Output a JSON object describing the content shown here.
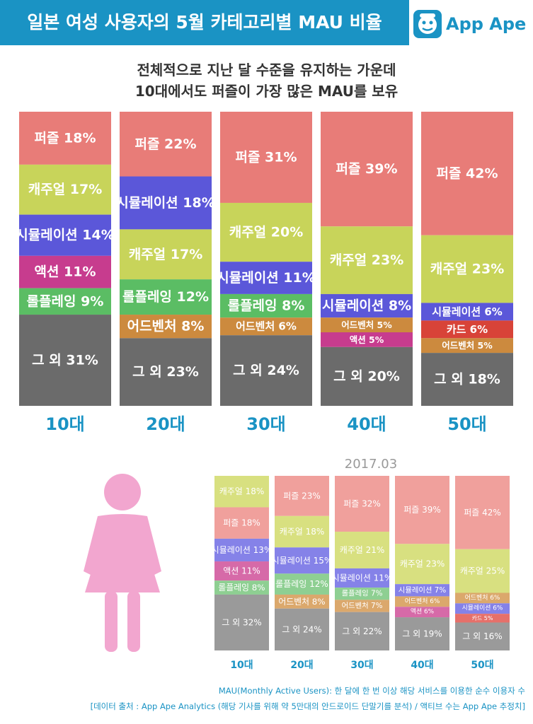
{
  "header": {
    "title": "일본 여성 사용자의 5월 카테고리별 MAU 비율",
    "logo_text": "App Ape"
  },
  "subtitle": {
    "line1": "전체적으로 지난 달 수준을 유지하는 가운데",
    "line2": "10대에서도 퍼즐이 가장 많은 MAU를 보유"
  },
  "colors": {
    "퍼즐": "#e87c78",
    "캐주얼": "#c8d45a",
    "시뮬레이션": "#5b57d9",
    "액션": "#c73c8e",
    "롤플레잉": "#5bbd64",
    "어드벤처": "#cc8a3e",
    "카드": "#d84338",
    "그 외": "#6b6b6b"
  },
  "colors_light": {
    "퍼즐": "#f0a09c",
    "캐주얼": "#d8e080",
    "시뮬레이션": "#8582e8",
    "액션": "#d66aa8",
    "롤플레잉": "#8ecf92",
    "어드벤처": "#dba86c",
    "카드": "#e6706a",
    "그 외": "#9a9a9a"
  },
  "accent": "#1a93c4",
  "chart_data": [
    {
      "type": "bar",
      "stacked": true,
      "title": "5월",
      "categories": [
        "10대",
        "20대",
        "30대",
        "40대",
        "50대"
      ],
      "stacks": [
        [
          {
            "name": "퍼즐",
            "value": 18
          },
          {
            "name": "캐주얼",
            "value": 17
          },
          {
            "name": "시뮬레이션",
            "value": 14
          },
          {
            "name": "액션",
            "value": 11
          },
          {
            "name": "롤플레잉",
            "value": 9
          },
          {
            "name": "그 외",
            "value": 31
          }
        ],
        [
          {
            "name": "퍼즐",
            "value": 22
          },
          {
            "name": "시뮬레이션",
            "value": 18
          },
          {
            "name": "캐주얼",
            "value": 17
          },
          {
            "name": "롤플레잉",
            "value": 12
          },
          {
            "name": "어드벤처",
            "value": 8
          },
          {
            "name": "그 외",
            "value": 23
          }
        ],
        [
          {
            "name": "퍼즐",
            "value": 31
          },
          {
            "name": "캐주얼",
            "value": 20
          },
          {
            "name": "시뮬레이션",
            "value": 11
          },
          {
            "name": "롤플레잉",
            "value": 8
          },
          {
            "name": "어드벤처",
            "value": 6
          },
          {
            "name": "그 외",
            "value": 24
          }
        ],
        [
          {
            "name": "퍼즐",
            "value": 39
          },
          {
            "name": "캐주얼",
            "value": 23
          },
          {
            "name": "시뮬레이션",
            "value": 8
          },
          {
            "name": "어드벤처",
            "value": 5
          },
          {
            "name": "액션",
            "value": 5
          },
          {
            "name": "그 외",
            "value": 20
          }
        ],
        [
          {
            "name": "퍼즐",
            "value": 42
          },
          {
            "name": "캐주얼",
            "value": 23
          },
          {
            "name": "시뮬레이션",
            "value": 6
          },
          {
            "name": "카드",
            "value": 6
          },
          {
            "name": "어드벤처",
            "value": 5
          },
          {
            "name": "그 외",
            "value": 18
          }
        ]
      ]
    },
    {
      "type": "bar",
      "stacked": true,
      "title": "2017.03",
      "categories": [
        "10대",
        "20대",
        "30대",
        "40대",
        "50대"
      ],
      "stacks": [
        [
          {
            "name": "캐주얼",
            "value": 18
          },
          {
            "name": "퍼즐",
            "value": 18
          },
          {
            "name": "시뮬레이션",
            "value": 13
          },
          {
            "name": "액션",
            "value": 11
          },
          {
            "name": "롤플레잉",
            "value": 8
          },
          {
            "name": "그 외",
            "value": 32
          }
        ],
        [
          {
            "name": "퍼즐",
            "value": 23
          },
          {
            "name": "캐주얼",
            "value": 18
          },
          {
            "name": "시뮬레이션",
            "value": 15
          },
          {
            "name": "롤플레잉",
            "value": 12
          },
          {
            "name": "어드벤처",
            "value": 8
          },
          {
            "name": "그 외",
            "value": 24
          }
        ],
        [
          {
            "name": "퍼즐",
            "value": 32
          },
          {
            "name": "캐주얼",
            "value": 21
          },
          {
            "name": "시뮬레이션",
            "value": 11
          },
          {
            "name": "롤플레잉",
            "value": 7
          },
          {
            "name": "어드벤처",
            "value": 7
          },
          {
            "name": "그 외",
            "value": 22
          }
        ],
        [
          {
            "name": "퍼즐",
            "value": 39
          },
          {
            "name": "캐주얼",
            "value": 23
          },
          {
            "name": "시뮬레이션",
            "value": 7
          },
          {
            "name": "어드벤처",
            "value": 6
          },
          {
            "name": "액션",
            "value": 6
          },
          {
            "name": "그 외",
            "value": 19
          }
        ],
        [
          {
            "name": "퍼즐",
            "value": 42
          },
          {
            "name": "캐주얼",
            "value": 25
          },
          {
            "name": "어드벤처",
            "value": 6
          },
          {
            "name": "시뮬레이션",
            "value": 6
          },
          {
            "name": "카드",
            "value": 5
          },
          {
            "name": "그 외",
            "value": 16
          }
        ]
      ]
    }
  ],
  "footnote": {
    "line1": "MAU(Monthly Active Users): 한 달에 한 번 이상 해당 서비스를 이용한 순수 이용자 수",
    "line2": "[데이터 출처 : App Ape Analytics (해당 기사를 위해 약 5만대의 안드로이드 단말기를 분석) / 액티브 수는 App Ape 추정치]"
  }
}
